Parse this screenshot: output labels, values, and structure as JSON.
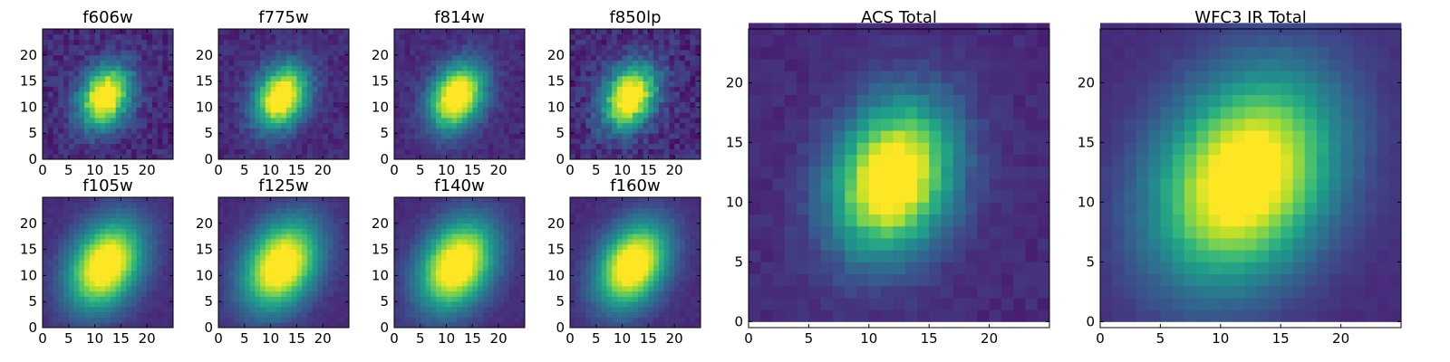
{
  "chart_data": [
    {
      "type": "heatmap",
      "title": "f606w",
      "colormap": "viridis",
      "grid": false,
      "peak": [
        12,
        12
      ],
      "spread": [
        3.1,
        4.2
      ],
      "angle_deg": -28,
      "noise": 0.16,
      "x_ticks": [
        "0",
        "5",
        "10",
        "15",
        "20"
      ],
      "y_ticks": [
        "0",
        "5",
        "10",
        "15",
        "20"
      ],
      "xlim": [
        0,
        25
      ],
      "ylim": [
        0,
        25
      ]
    },
    {
      "type": "heatmap",
      "title": "f775w",
      "colormap": "viridis",
      "grid": false,
      "peak": [
        12,
        12
      ],
      "spread": [
        3.2,
        4.4
      ],
      "angle_deg": -28,
      "noise": 0.12,
      "x_ticks": [
        "0",
        "5",
        "10",
        "15",
        "20"
      ],
      "y_ticks": [
        "0",
        "5",
        "10",
        "15",
        "20"
      ],
      "xlim": [
        0,
        25
      ],
      "ylim": [
        0,
        25
      ]
    },
    {
      "type": "heatmap",
      "title": "f814w",
      "colormap": "viridis",
      "grid": false,
      "peak": [
        12,
        12
      ],
      "spread": [
        3.3,
        4.6
      ],
      "angle_deg": -28,
      "noise": 0.1,
      "x_ticks": [
        "0",
        "5",
        "10",
        "15",
        "20"
      ],
      "y_ticks": [
        "0",
        "5",
        "10",
        "15",
        "20"
      ],
      "xlim": [
        0,
        25
      ],
      "ylim": [
        0,
        25
      ]
    },
    {
      "type": "heatmap",
      "title": "f850lp",
      "colormap": "viridis",
      "grid": false,
      "peak": [
        11.5,
        12
      ],
      "spread": [
        3.2,
        4.4
      ],
      "angle_deg": -28,
      "noise": 0.18,
      "x_ticks": [
        "0",
        "5",
        "10",
        "15",
        "20"
      ],
      "y_ticks": [
        "0",
        "5",
        "10",
        "15",
        "20"
      ],
      "xlim": [
        0,
        25
      ],
      "ylim": [
        0,
        25
      ]
    },
    {
      "type": "heatmap",
      "title": "f105w",
      "colormap": "viridis",
      "grid": false,
      "peak": [
        12,
        12
      ],
      "spread": [
        4.4,
        6.2
      ],
      "angle_deg": -30,
      "noise": 0.05,
      "x_ticks": [
        "0",
        "5",
        "10",
        "15",
        "20"
      ],
      "y_ticks": [
        "0",
        "5",
        "10",
        "15",
        "20"
      ],
      "xlim": [
        0,
        25
      ],
      "ylim": [
        0,
        25
      ]
    },
    {
      "type": "heatmap",
      "title": "f125w",
      "colormap": "viridis",
      "grid": false,
      "peak": [
        12,
        12
      ],
      "spread": [
        4.5,
        6.3
      ],
      "angle_deg": -30,
      "noise": 0.05,
      "x_ticks": [
        "0",
        "5",
        "10",
        "15",
        "20"
      ],
      "y_ticks": [
        "0",
        "5",
        "10",
        "15",
        "20"
      ],
      "xlim": [
        0,
        25
      ],
      "ylim": [
        0,
        25
      ]
    },
    {
      "type": "heatmap",
      "title": "f140w",
      "colormap": "viridis",
      "grid": false,
      "peak": [
        12,
        12
      ],
      "spread": [
        4.5,
        6.3
      ],
      "angle_deg": -30,
      "noise": 0.05,
      "x_ticks": [
        "0",
        "5",
        "10",
        "15",
        "20"
      ],
      "y_ticks": [
        "0",
        "5",
        "10",
        "15",
        "20"
      ],
      "xlim": [
        0,
        25
      ],
      "ylim": [
        0,
        25
      ]
    },
    {
      "type": "heatmap",
      "title": "f160w",
      "colormap": "viridis",
      "grid": false,
      "peak": [
        12,
        12
      ],
      "spread": [
        4.2,
        6.0
      ],
      "angle_deg": -30,
      "noise": 0.05,
      "x_ticks": [
        "0",
        "5",
        "10",
        "15",
        "20"
      ],
      "y_ticks": [
        "0",
        "5",
        "10",
        "15",
        "20"
      ],
      "xlim": [
        0,
        25
      ],
      "ylim": [
        0,
        25
      ]
    },
    {
      "type": "heatmap",
      "title": "ACS Total",
      "colormap": "viridis",
      "grid": false,
      "peak": [
        12,
        12
      ],
      "spread": [
        3.3,
        4.5
      ],
      "angle_deg": -20,
      "noise": 0.07,
      "x_ticks": [
        "0",
        "5",
        "10",
        "15",
        "20"
      ],
      "y_ticks": [
        "0",
        "5",
        "10",
        "15",
        "20"
      ],
      "xlim": [
        0,
        25
      ],
      "ylim": [
        -0.5,
        24.5
      ]
    },
    {
      "type": "heatmap",
      "title": "WFC3 IR Total",
      "colormap": "viridis",
      "grid": false,
      "peak": [
        12,
        12
      ],
      "spread": [
        4.7,
        6.3
      ],
      "angle_deg": -30,
      "noise": 0.03,
      "x_ticks": [
        "0",
        "5",
        "10",
        "15",
        "20"
      ],
      "y_ticks": [
        "0",
        "5",
        "10",
        "15",
        "20"
      ],
      "xlim": [
        0,
        25
      ],
      "ylim": [
        -0.5,
        24.5
      ]
    }
  ]
}
